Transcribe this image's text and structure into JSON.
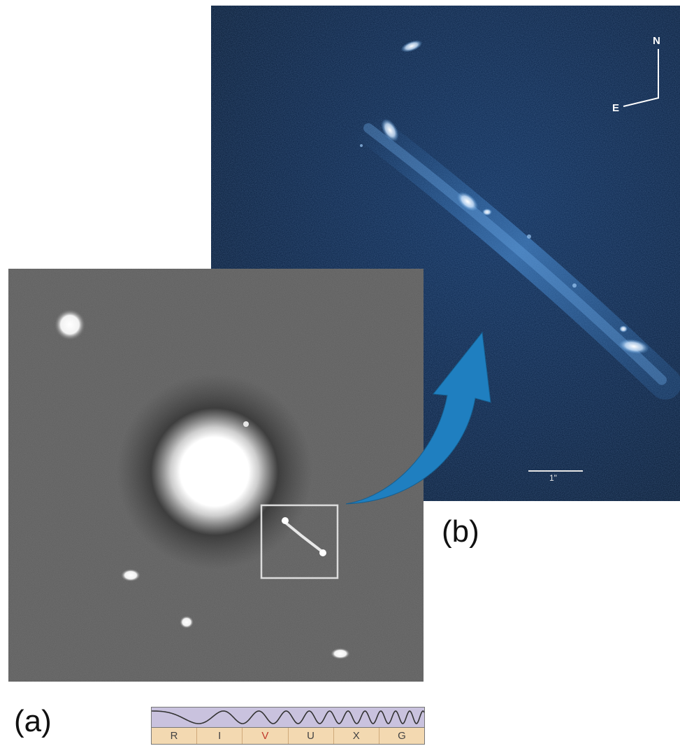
{
  "panel_b": {
    "caption": "(b)",
    "compass": {
      "north": "N",
      "east": "E"
    },
    "scale_label": "1\""
  },
  "panel_a": {
    "caption": "(a)"
  },
  "spectrum": {
    "bands": [
      "R",
      "I",
      "V",
      "U",
      "X",
      "G"
    ],
    "highlighted_band": "V",
    "colors": {
      "wave_band": "#c9c2de",
      "label_band": "#f3d9b1",
      "active": "#c0392b"
    }
  },
  "arrow_color": "#1f7fc0"
}
